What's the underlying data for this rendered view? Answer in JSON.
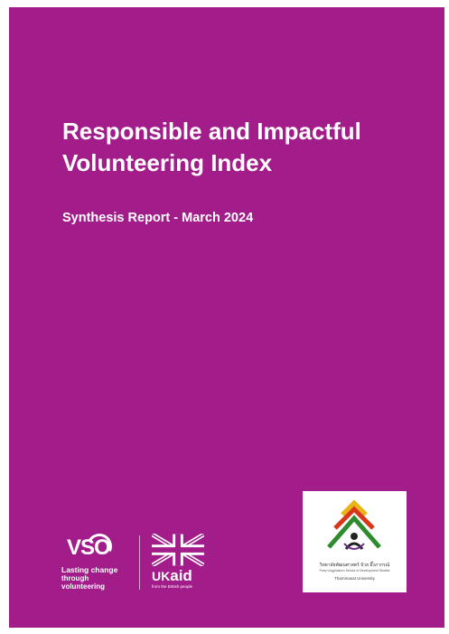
{
  "cover": {
    "title_lines": [
      "Responsible and Impactful",
      "Volunteering Index"
    ],
    "subtitle": "Synthesis Report - March 2024",
    "background_color": "#a21d8a"
  },
  "logos": {
    "vso": {
      "wordmark": "VSO",
      "tagline_lines": [
        "Lasting change",
        "through volunteering"
      ]
    },
    "ukaid": {
      "wordmark_uk": "UK",
      "wordmark_aid": "aid",
      "tagline": "from the British people",
      "icon": "union-flag-icon"
    },
    "university": {
      "thai_name": "วิทยาลัยพัฒนศาสตร์ ป๋วย อึ๊งภากรณ์",
      "english_name": "Puey Ungphakorn School of Development Studies",
      "university_name": "Thammasat University",
      "icon": "stacked-chevron-emblem-icon"
    }
  }
}
